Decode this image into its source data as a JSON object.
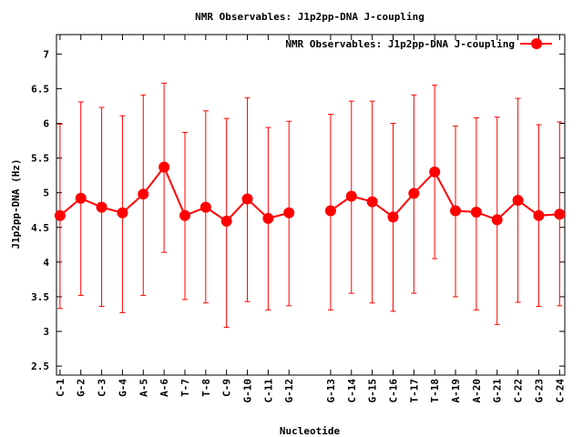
{
  "chart_data": {
    "type": "line",
    "title": "NMR Observables: J1p2pp-DNA J-coupling",
    "xlabel": "Nucleotide",
    "ylabel": "J1p2pp-DNA (Hz)",
    "ylim": [
      2.37,
      7.28
    ],
    "xlim": [
      0.83,
      25.25
    ],
    "yticks": [
      2.5,
      3,
      3.5,
      4,
      4.5,
      5,
      5.5,
      6,
      6.5,
      7
    ],
    "ytick_labels": [
      "2.5",
      "3",
      "3.5",
      "4",
      "4.5",
      "5",
      "5.5",
      "6",
      "6.5",
      "7"
    ],
    "grid": false,
    "legend": {
      "position": "top-right",
      "label": "NMR Observables: J1p2pp-DNA J-coupling"
    },
    "color": "#ff0000",
    "series": [
      {
        "name": "NMR Observables: J1p2pp-DNA J-coupling",
        "segments": [
          {
            "x": [
              1,
              2,
              3,
              4,
              5,
              6,
              7,
              8,
              9,
              10,
              11,
              12
            ],
            "labels": [
              "C-1",
              "G-2",
              "C-3",
              "G-4",
              "A-5",
              "A-6",
              "T-7",
              "T-8",
              "C-9",
              "G-10",
              "C-11",
              "G-12"
            ],
            "y": [
              4.67,
              4.92,
              4.79,
              4.71,
              4.98,
              5.37,
              4.67,
              4.79,
              4.59,
              4.91,
              4.63,
              4.71
            ],
            "err_high": [
              5.99,
              6.31,
              6.23,
              6.11,
              6.41,
              6.58,
              5.87,
              6.18,
              6.07,
              6.37,
              5.94,
              6.03
            ],
            "err_low": [
              3.33,
              3.52,
              3.36,
              3.27,
              3.52,
              4.14,
              3.46,
              3.41,
              3.06,
              3.43,
              3.31,
              3.37
            ]
          },
          {
            "x": [
              14,
              15,
              16,
              17,
              18,
              19,
              20,
              21,
              22,
              23,
              24,
              25
            ],
            "labels": [
              "G-13",
              "C-14",
              "G-15",
              "C-16",
              "T-17",
              "T-18",
              "A-19",
              "A-20",
              "G-21",
              "C-22",
              "G-23",
              "C-24"
            ],
            "y": [
              4.74,
              4.95,
              4.87,
              4.65,
              4.99,
              5.3,
              4.74,
              4.72,
              4.61,
              4.89,
              4.67,
              4.69
            ],
            "err_high": [
              6.13,
              6.32,
              6.32,
              6.0,
              6.41,
              6.55,
              5.96,
              6.08,
              6.09,
              6.36,
              5.98,
              6.02
            ],
            "err_low": [
              3.31,
              3.55,
              3.41,
              3.29,
              3.55,
              4.05,
              3.5,
              3.31,
              3.1,
              3.42,
              3.36,
              3.37
            ]
          }
        ]
      }
    ]
  }
}
